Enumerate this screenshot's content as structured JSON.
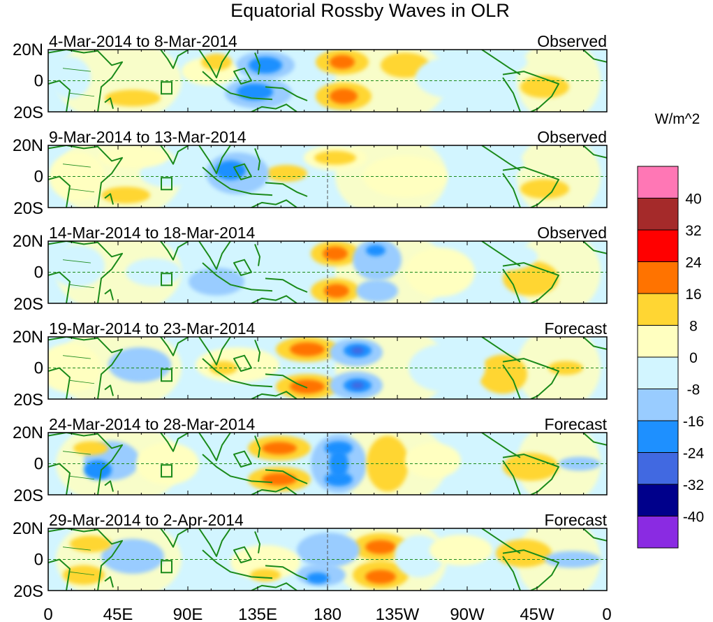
{
  "title": "Equatorial Rossby Waves in OLR",
  "panels": [
    {
      "dates": "4-Mar-2014 to 8-Mar-2014",
      "status": "Observed"
    },
    {
      "dates": "9-Mar-2014 to 13-Mar-2014",
      "status": "Observed"
    },
    {
      "dates": "14-Mar-2014 to 18-Mar-2014",
      "status": "Observed"
    },
    {
      "dates": "19-Mar-2014 to 23-Mar-2014",
      "status": "Forecast"
    },
    {
      "dates": "24-Mar-2014 to 28-Mar-2014",
      "status": "Forecast"
    },
    {
      "dates": "29-Mar-2014 to 2-Apr-2014",
      "status": "Forecast"
    }
  ],
  "lat_labels": [
    "20N",
    "0",
    "20S"
  ],
  "lon_labels": [
    "0",
    "45E",
    "90E",
    "135E",
    "180",
    "135W",
    "90W",
    "45W",
    "0"
  ],
  "colorbar": {
    "units": "W/m^2",
    "labels": [
      "40",
      "32",
      "24",
      "16",
      "8",
      "0",
      "-8",
      "-16",
      "-24",
      "-32",
      "-40"
    ],
    "colors": [
      "#ff77b5",
      "#a52a2a",
      "#ff0000",
      "#ff7300",
      "#ffd633",
      "#ffffc0",
      "#d2f5ff",
      "#99ccff",
      "#1e90ff",
      "#4169e1",
      "#00008b",
      "#8a2be2"
    ]
  },
  "palette": {
    "pos1": "#ffffc0",
    "pos2": "#ffd633",
    "pos3": "#ff7300",
    "neg1": "#d2f5ff",
    "neg2": "#99ccff",
    "neg3": "#1e90ff",
    "neg4": "#4169e1",
    "coast": "#1a8a1a"
  }
}
